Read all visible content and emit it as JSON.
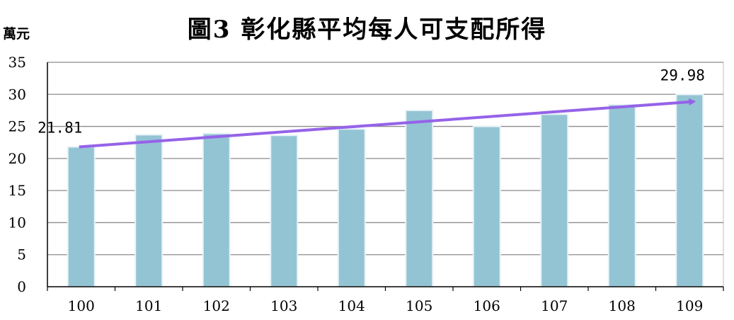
{
  "chart_data": {
    "type": "bar",
    "title": "圖3 彰化縣平均每人可支配所得",
    "ylabel": "萬元",
    "xlabel": "",
    "categories": [
      "100",
      "101",
      "102",
      "103",
      "104",
      "105",
      "106",
      "107",
      "108",
      "109"
    ],
    "values": [
      21.81,
      23.7,
      23.9,
      23.6,
      24.6,
      27.5,
      25.0,
      26.9,
      28.4,
      29.98
    ],
    "ylim": [
      0,
      35
    ],
    "yticks": [
      0,
      5,
      10,
      15,
      20,
      25,
      30,
      35
    ],
    "grid": true,
    "legend": "none",
    "data_labels": [
      {
        "category": "100",
        "text": "21.81"
      },
      {
        "category": "109",
        "text": "29.98"
      }
    ],
    "trend_arrow": {
      "from_category": "100",
      "from_value": 21.81,
      "to_category": "109",
      "to_value": 29.98
    },
    "colors": {
      "bar": "#93c4d4",
      "bar_edge": "#e8f3f7",
      "trend": "#9563e8",
      "grid": "#8c8c8c",
      "axis": "#000000"
    }
  }
}
